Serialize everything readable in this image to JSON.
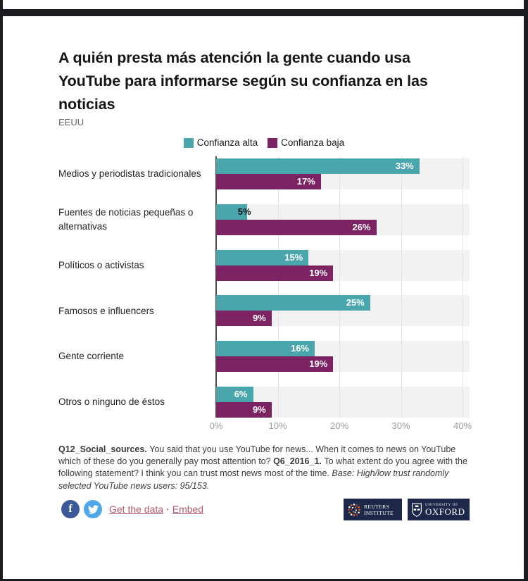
{
  "header": {
    "title": "A quién presta más atención la gente cuando usa YouTube para informarse según su confianza en las noticias",
    "subtitle": "EEUU"
  },
  "legend": {
    "items": [
      {
        "label": "Confianza alta",
        "color": "#4AA6AD"
      },
      {
        "label": "Confianza baja",
        "color": "#7D2363"
      }
    ]
  },
  "chart_data": {
    "type": "bar",
    "orientation": "horizontal",
    "categories": [
      "Medios y periodistas tradicionales",
      "Fuentes de noticias pequeñas o alternativas",
      "Políticos o activistas",
      "Famosos e influencers",
      "Gente corriente",
      "Otros o ninguno de éstos"
    ],
    "series": [
      {
        "name": "Confianza alta",
        "color": "#4AA6AD",
        "values": [
          33,
          5,
          15,
          25,
          16,
          6
        ]
      },
      {
        "name": "Confianza baja",
        "color": "#7D2363",
        "values": [
          17,
          26,
          19,
          9,
          19,
          9
        ]
      }
    ],
    "value_suffix": "%",
    "x_ticks": [
      "0%",
      "10%",
      "20%",
      "30%",
      "40%"
    ],
    "xlim": [
      0,
      40
    ],
    "grid": true,
    "legend_position": "top-center",
    "row_band_color": "#f2f2f2"
  },
  "footnote": {
    "segments": [
      {
        "text": "Q12_Social_sources. ",
        "bold": true
      },
      {
        "text": "You said that you use YouTube for news... When it comes to news on YouTube which of these do you generally pay most attention to? "
      },
      {
        "text": "Q6_2016_1. ",
        "bold": true
      },
      {
        "text": "To what extent do you agree with the following statement? I think you can trust most news most of the time. "
      },
      {
        "text": "Base: High/low trust randomly selected YouTube news users: 95/153.",
        "italic": true
      }
    ]
  },
  "footer": {
    "facebook_label": "f",
    "links": {
      "get_the_data": "Get the data",
      "separator": "·",
      "embed": "Embed"
    },
    "logos": {
      "reuters": {
        "line1": "REUTERS",
        "line2": "INSTITUTE"
      },
      "oxford": {
        "line1": "UNIVERSITY OF",
        "line2": "OXFORD"
      }
    }
  },
  "colors": {
    "teal": "#4AA6AD",
    "purple": "#7D2363",
    "navy": "#1C2749",
    "link": "#B25A70",
    "facebook": "#3B5998",
    "twitter": "#4FA9E8"
  }
}
